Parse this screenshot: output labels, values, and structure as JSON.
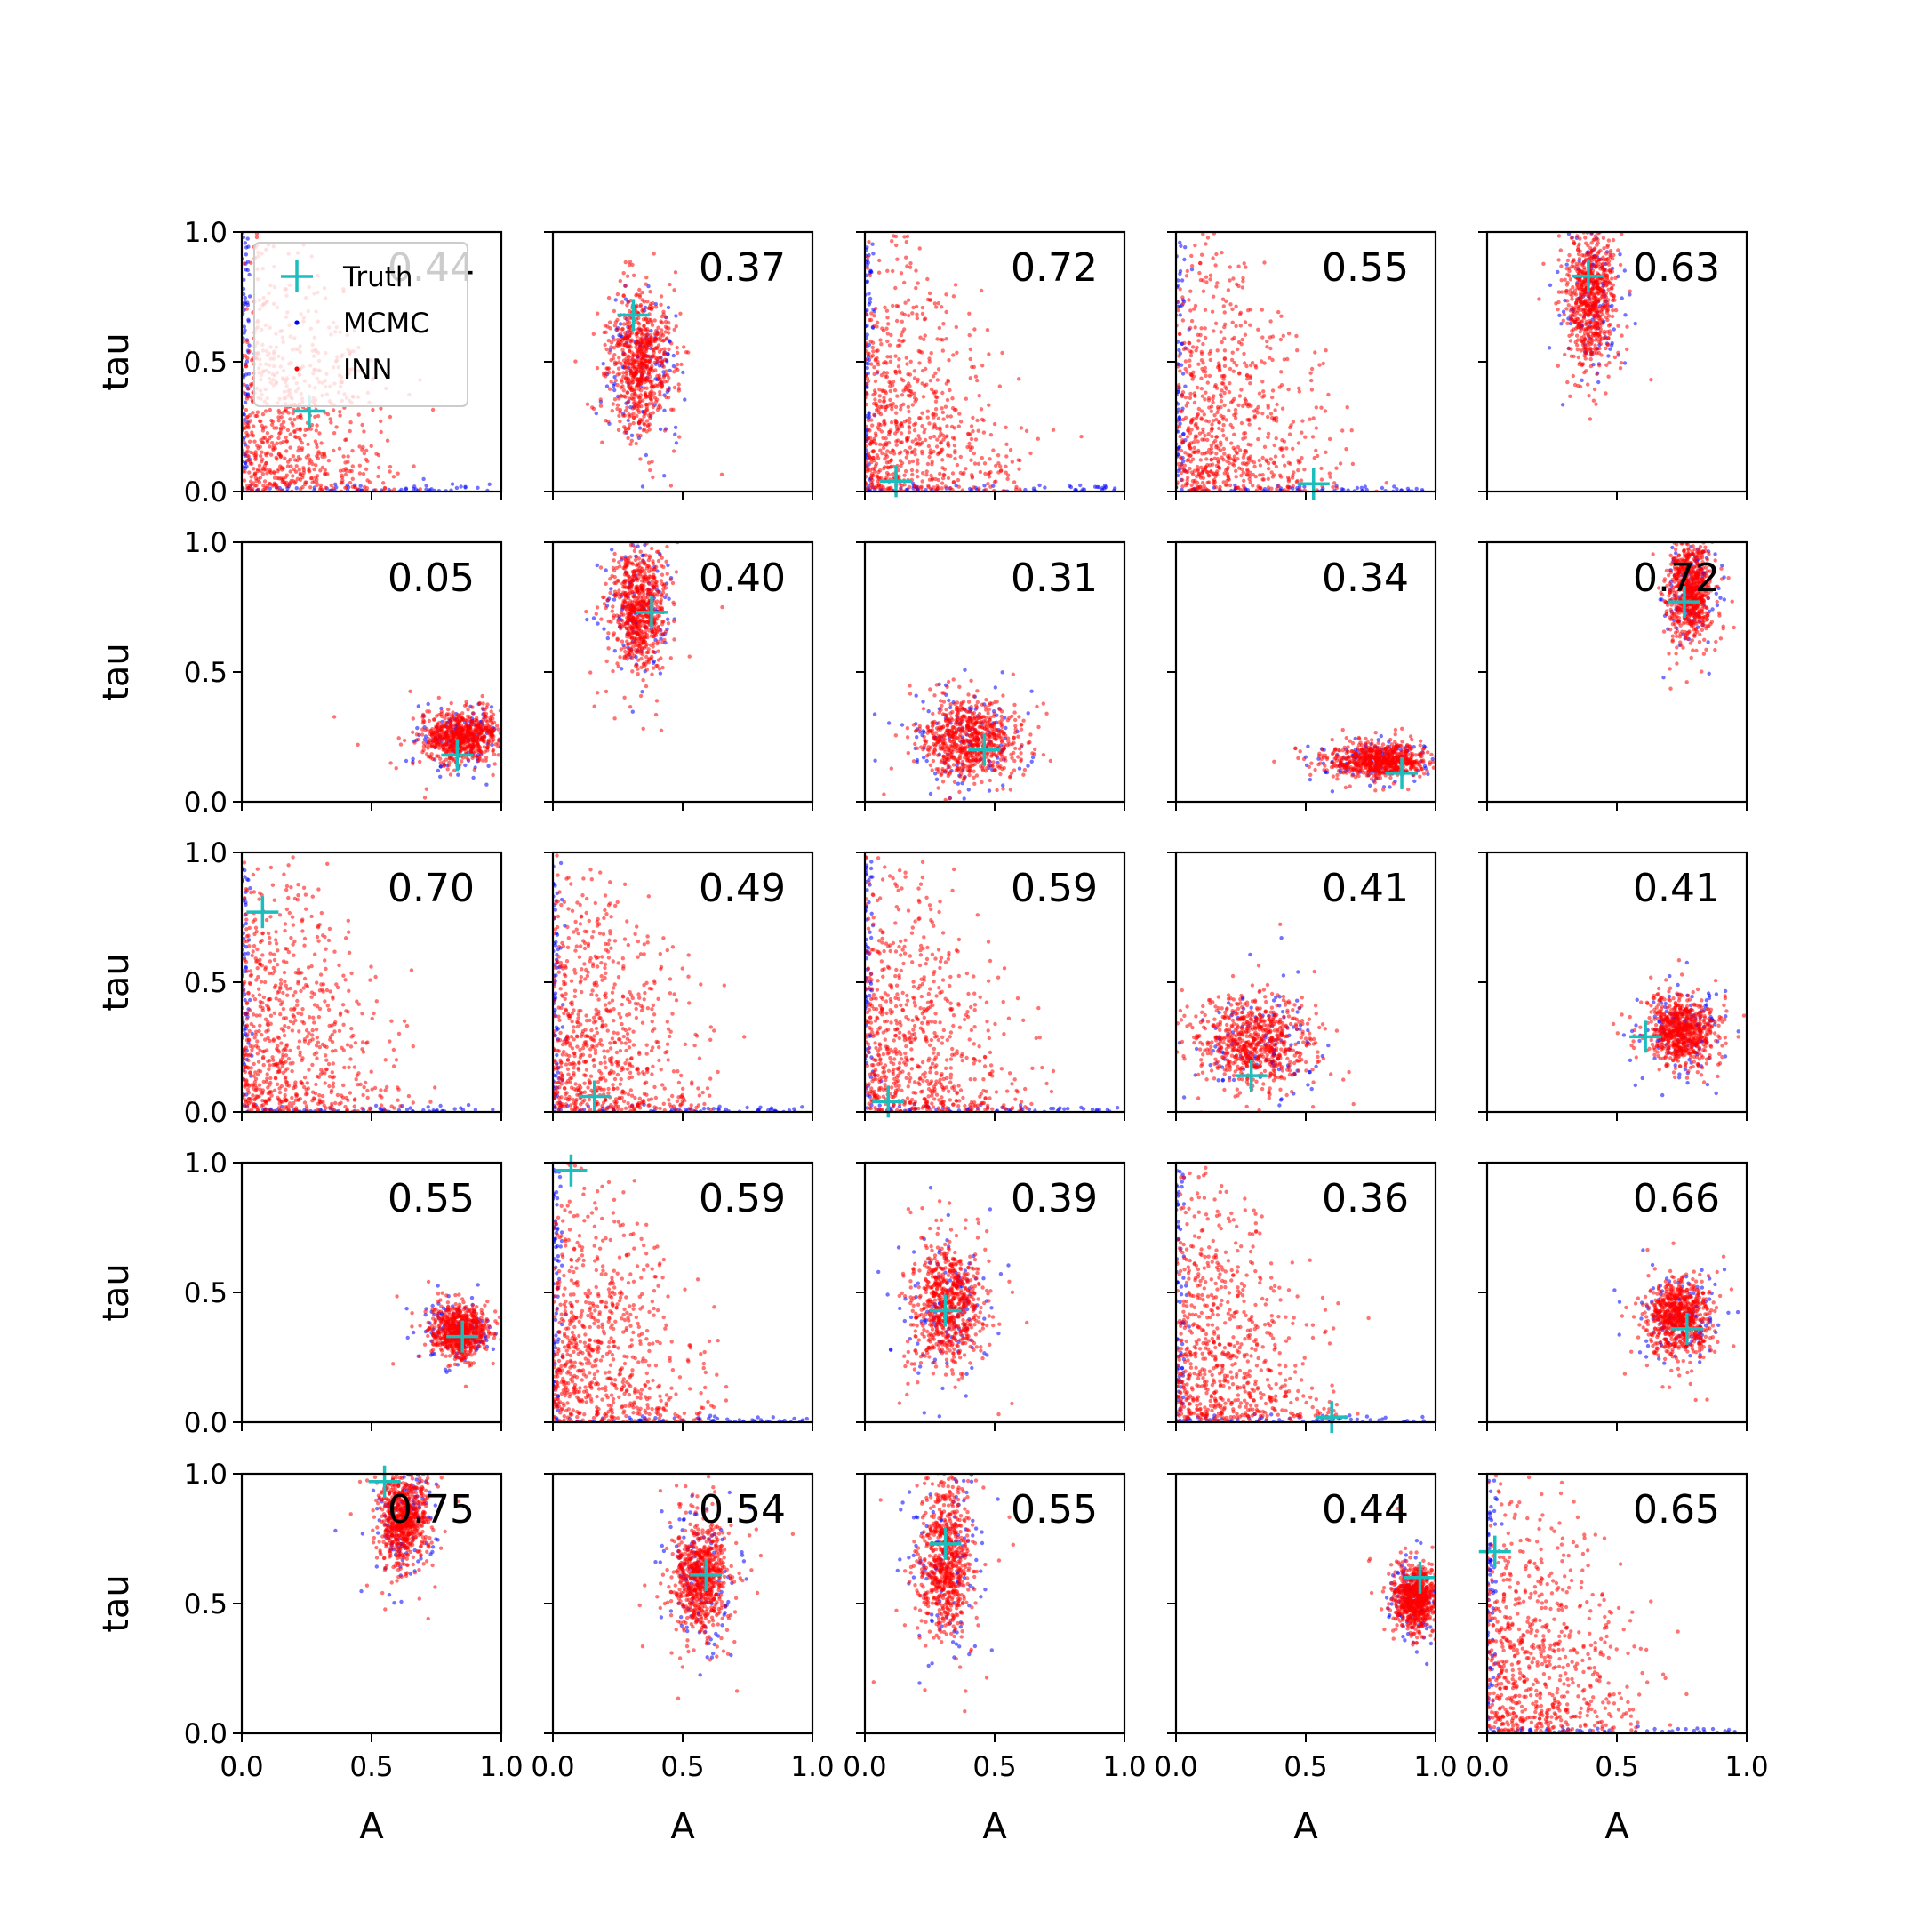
{
  "chart_data": {
    "type": "scatter",
    "grid": false,
    "layout": {
      "rows": 5,
      "cols": 5
    },
    "xlabel": "A",
    "ylabel": "tau",
    "xlim": [
      0,
      1
    ],
    "ylim": [
      0,
      1
    ],
    "xticks": [
      "0.0",
      "0.5",
      "1.0"
    ],
    "yticks": [
      "0.0",
      "0.5",
      "1.0"
    ],
    "legend": {
      "placement": "upper-left",
      "panel": 0,
      "entries": [
        {
          "label": "Truth",
          "marker": "plus",
          "color": "#1cbdbd"
        },
        {
          "label": "MCMC",
          "marker": "dot",
          "color": "#0000ff"
        },
        {
          "label": "INN",
          "marker": "dot",
          "color": "#ff0000"
        }
      ]
    },
    "colors": {
      "truth": "#1cbdbd",
      "mcmc": "#0000ff",
      "inn": "#ff0000"
    },
    "panels": [
      {
        "label": "0.44",
        "truth": [
          0.26,
          0.31
        ],
        "shape": "corner"
      },
      {
        "label": "0.37",
        "truth": [
          0.31,
          0.68
        ],
        "shape": "blob",
        "center": [
          0.34,
          0.5
        ],
        "spread": [
          0.09,
          0.2
        ]
      },
      {
        "label": "0.72",
        "truth": [
          0.12,
          0.04
        ],
        "shape": "corner"
      },
      {
        "label": "0.55",
        "truth": [
          0.53,
          0.03
        ],
        "shape": "corner"
      },
      {
        "label": "0.63",
        "truth": [
          0.39,
          0.83
        ],
        "shape": "blob",
        "center": [
          0.4,
          0.75
        ],
        "spread": [
          0.07,
          0.2
        ]
      },
      {
        "label": "0.05",
        "truth": [
          0.83,
          0.18
        ],
        "shape": "blob",
        "center": [
          0.85,
          0.25
        ],
        "spread": [
          0.12,
          0.07
        ]
      },
      {
        "label": "0.40",
        "truth": [
          0.38,
          0.73
        ],
        "shape": "blob",
        "center": [
          0.33,
          0.75
        ],
        "spread": [
          0.08,
          0.18
        ]
      },
      {
        "label": "0.31",
        "truth": [
          0.46,
          0.2
        ],
        "shape": "blob",
        "center": [
          0.4,
          0.24
        ],
        "spread": [
          0.14,
          0.11
        ]
      },
      {
        "label": "0.34",
        "truth": [
          0.87,
          0.11
        ],
        "shape": "blob",
        "center": [
          0.78,
          0.16
        ],
        "spread": [
          0.14,
          0.05
        ]
      },
      {
        "label": "0.72",
        "truth": [
          0.76,
          0.77
        ],
        "shape": "blob",
        "center": [
          0.78,
          0.82
        ],
        "spread": [
          0.06,
          0.14
        ]
      },
      {
        "label": "0.70",
        "truth": [
          0.08,
          0.77
        ],
        "shape": "corner"
      },
      {
        "label": "0.49",
        "truth": [
          0.16,
          0.06
        ],
        "shape": "corner"
      },
      {
        "label": "0.59",
        "truth": [
          0.09,
          0.04
        ],
        "shape": "corner"
      },
      {
        "label": "0.41",
        "truth": [
          0.29,
          0.14
        ],
        "shape": "blob",
        "center": [
          0.3,
          0.26
        ],
        "spread": [
          0.17,
          0.14
        ]
      },
      {
        "label": "0.41",
        "truth": [
          0.61,
          0.29
        ],
        "shape": "blob",
        "center": [
          0.75,
          0.31
        ],
        "spread": [
          0.1,
          0.1
        ]
      },
      {
        "label": "0.55",
        "truth": [
          0.85,
          0.33
        ],
        "shape": "blob",
        "center": [
          0.84,
          0.35
        ],
        "spread": [
          0.08,
          0.07
        ]
      },
      {
        "label": "0.59",
        "truth": [
          0.07,
          0.97
        ],
        "shape": "corner"
      },
      {
        "label": "0.39",
        "truth": [
          0.31,
          0.43
        ],
        "shape": "blob",
        "center": [
          0.32,
          0.45
        ],
        "spread": [
          0.1,
          0.18
        ]
      },
      {
        "label": "0.36",
        "truth": [
          0.6,
          0.02
        ],
        "shape": "corner"
      },
      {
        "label": "0.66",
        "truth": [
          0.77,
          0.36
        ],
        "shape": "blob",
        "center": [
          0.74,
          0.4
        ],
        "spread": [
          0.09,
          0.11
        ]
      },
      {
        "label": "0.75",
        "truth": [
          0.55,
          0.97
        ],
        "shape": "blob",
        "center": [
          0.62,
          0.82
        ],
        "spread": [
          0.07,
          0.14
        ]
      },
      {
        "label": "0.54",
        "truth": [
          0.59,
          0.61
        ],
        "shape": "blob",
        "center": [
          0.57,
          0.6
        ],
        "spread": [
          0.08,
          0.16
        ]
      },
      {
        "label": "0.55",
        "truth": [
          0.31,
          0.73
        ],
        "shape": "blob",
        "center": [
          0.31,
          0.67
        ],
        "spread": [
          0.08,
          0.22
        ]
      },
      {
        "label": "0.44",
        "truth": [
          0.94,
          0.6
        ],
        "shape": "blob",
        "center": [
          0.92,
          0.52
        ],
        "spread": [
          0.06,
          0.09
        ]
      },
      {
        "label": "0.65",
        "truth": [
          0.03,
          0.7
        ],
        "shape": "corner"
      }
    ]
  }
}
